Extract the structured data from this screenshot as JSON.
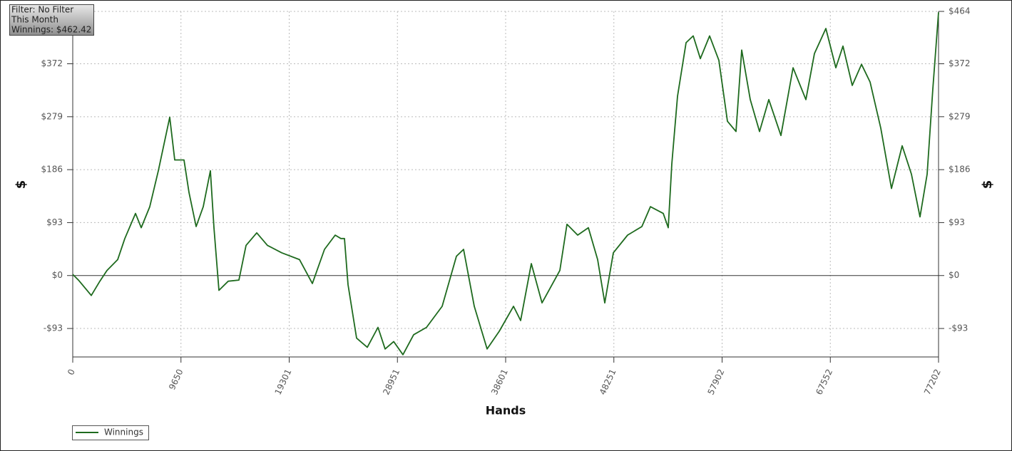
{
  "chart_data": {
    "type": "line",
    "annotations": [
      "Filter: No Filter",
      "This Month",
      "Winnings: $462.42"
    ],
    "x_label": "Hands",
    "y_label": "$",
    "x": [
      0,
      509,
      1653,
      2416,
      3052,
      4006,
      4642,
      5596,
      6105,
      6868,
      7631,
      8649,
      9094,
      9920,
      10365,
      11001,
      11637,
      12273,
      12591,
      13036,
      13862,
      14816,
      15452,
      16406,
      17360,
      18632,
      20222,
      21367,
      22448,
      23402,
      23910,
      24228,
      24546,
      25309,
      26263,
      27217,
      27853,
      28616,
      29443,
      30397,
      31542,
      32941,
      34213,
      34849,
      35803,
      36947,
      38028,
      39300,
      39936,
      40890,
      41844,
      43434,
      44070,
      45023,
      45977,
      46804,
      47440,
      48203,
      49475,
      50747,
      51510,
      52655,
      53100,
      53418,
      53926,
      54690,
      55326,
      55962,
      56789,
      57615,
      58378,
      59141,
      59650,
      60413,
      61240,
      62066,
      63147,
      64228,
      65373,
      66136,
      67153,
      68044,
      68680,
      69507,
      70333,
      71096,
      72050,
      73004,
      73958,
      74784,
      75547,
      76183,
      76692,
      77202
    ],
    "series": [
      {
        "name": "Winnings",
        "color": "#1e6a1e",
        "values": [
          2,
          -8,
          -35,
          -10,
          9,
          28,
          65,
          109,
          84,
          121,
          184,
          278,
          203,
          203,
          146,
          86,
          121,
          184,
          84,
          -26,
          -10,
          -8,
          53,
          75,
          53,
          40,
          28,
          -14,
          46,
          71,
          65,
          65,
          -16,
          -110,
          -126,
          -91,
          -129,
          -116,
          -139,
          -104,
          -91,
          -54,
          34,
          46,
          -54,
          -129,
          -98,
          -54,
          -79,
          21,
          -48,
          9,
          90,
          71,
          84,
          28,
          -48,
          40,
          71,
          86,
          121,
          109,
          84,
          196,
          315,
          409,
          421,
          381,
          421,
          378,
          271,
          253,
          396,
          309,
          253,
          309,
          246,
          365,
          309,
          390,
          434,
          365,
          403,
          334,
          371,
          340,
          259,
          153,
          228,
          178,
          103,
          178,
          328,
          462.42
        ]
      }
    ],
    "xlim": [
      0,
      77202
    ],
    "xticks": [
      0,
      9650,
      19301,
      28951,
      38601,
      48251,
      57902,
      67552,
      77202
    ],
    "ylim": [
      -143,
      464
    ],
    "yticks": [
      {
        "value": -93,
        "label": "-$93"
      },
      {
        "value": 0,
        "label": "$0"
      },
      {
        "value": 93,
        "label": "$93"
      },
      {
        "value": 186,
        "label": "$186"
      },
      {
        "value": 279,
        "label": "$279"
      },
      {
        "value": 372,
        "label": "$372"
      },
      {
        "value": 464,
        "label": "$464"
      }
    ],
    "grid": true
  }
}
